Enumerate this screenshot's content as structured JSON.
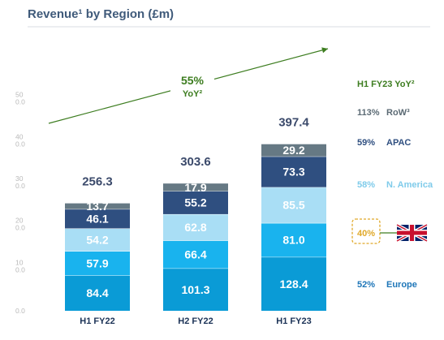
{
  "chart_data": {
    "type": "bar",
    "stacked": true,
    "title": "Revenue¹ by Region (£m)",
    "categories": [
      "H1 FY22",
      "H2 FY22",
      "H1 FY23"
    ],
    "series": [
      {
        "name": "Europe",
        "values": [
          84.4,
          101.3,
          128.4
        ],
        "color": "#0a9bd6"
      },
      {
        "name": "",
        "values": [
          57.9,
          66.4,
          81.0
        ],
        "color": "#19b3ee"
      },
      {
        "name": "N. America",
        "values": [
          54.2,
          62.8,
          85.5
        ],
        "color": "#a9def5"
      },
      {
        "name": "APAC",
        "values": [
          46.1,
          55.2,
          73.3
        ],
        "color": "#2f4f80"
      },
      {
        "name": "RoW³",
        "values": [
          13.7,
          17.9,
          29.2
        ],
        "color": "#667984"
      }
    ],
    "totals": [
      "256.3",
      "303.6",
      "397.4"
    ],
    "yticks": [
      [
        "0.0",
        ""
      ],
      [
        "10",
        "0.0"
      ],
      [
        "20",
        "0.0"
      ],
      [
        "30",
        "0.0"
      ],
      [
        "40",
        "0.0"
      ],
      [
        "50",
        "0.0"
      ]
    ],
    "ylim": [
      0,
      500
    ],
    "grid": false,
    "legend": "right",
    "trend_annotation": {
      "line1": "55%",
      "line2": "YoY²"
    },
    "yoy_header": "H1 FY23 YoY²",
    "yoy_rows": [
      {
        "pct": "52%",
        "label": "Europe",
        "color": "#1e76b8"
      },
      {
        "pct": "40%",
        "label": "",
        "color": "#e0a92a",
        "flag": "uk-flag"
      },
      {
        "pct": "58%",
        "label": "N. America",
        "color": "#7fcbea"
      },
      {
        "pct": "59%",
        "label": "APAC",
        "color": "#2f4f80"
      },
      {
        "pct": "113%",
        "label": "RoW³",
        "color": "#5b6a74"
      }
    ],
    "yoy_header_color": "#3d7d20",
    "total_color": "#3b4a6b"
  }
}
